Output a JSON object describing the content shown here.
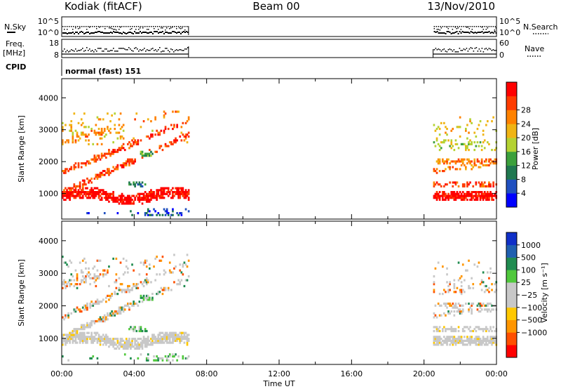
{
  "header": {
    "station": "Kodiak (fitACF)",
    "beam": "Beam 00",
    "date": "13/Nov/2010"
  },
  "status_panels": {
    "nsky_label": "N.Sky",
    "nsearch_label": "N.Search",
    "nsky_ticks": [
      "10^5",
      "10^0"
    ],
    "freq_label_1": "Freq.",
    "freq_label_2": "[MHz]",
    "freq_ticks": [
      "18",
      "8"
    ],
    "nave_label": "Nave",
    "nave_ticks": [
      "60",
      "0"
    ],
    "cpid_label": "CPID",
    "cpid_value": "normal (fast) 151"
  },
  "colors": {
    "power": [
      "#0000ff",
      "#2050c0",
      "#207850",
      "#3ca03c",
      "#b4d232",
      "#f0b414",
      "#ff8200",
      "#ff3c00",
      "#ff0000"
    ],
    "velocity": [
      "#ff0000",
      "#ff5000",
      "#ff9600",
      "#ffc800",
      "#c8c8c8",
      "#c8c8c8",
      "#50c83c",
      "#208c50",
      "#2060b0",
      "#1030c8"
    ]
  },
  "chart_data": [
    {
      "type": "heatmap",
      "title": "Power",
      "xlabel": "Time UT",
      "ylabel": "Slant Range [km]",
      "x_ticks": [
        "00:00",
        "04:00",
        "08:00",
        "12:00",
        "16:00",
        "20:00",
        "00:00"
      ],
      "y_ticks": [
        "1000",
        "2000",
        "3000",
        "4000"
      ],
      "xlim": [
        0,
        24
      ],
      "ylim": [
        200,
        4600
      ],
      "colorbar": {
        "label": "Power [dB]",
        "ticks": [
          "4",
          "8",
          "12",
          "16",
          "20",
          "24",
          "28"
        ]
      },
      "data_intervals_hours": [
        [
          0,
          7
        ],
        [
          20.5,
          24
        ]
      ]
    },
    {
      "type": "heatmap",
      "title": "Velocity",
      "xlabel": "Time UT",
      "ylabel": "Slant Range [km]",
      "x_ticks": [
        "00:00",
        "04:00",
        "08:00",
        "12:00",
        "16:00",
        "20:00",
        "00:00"
      ],
      "y_ticks": [
        "1000",
        "2000",
        "3000",
        "4000"
      ],
      "xlim": [
        0,
        24
      ],
      "ylim": [
        200,
        4600
      ],
      "colorbar": {
        "label": "Velocity [m s⁻¹]",
        "ticks": [
          "1000",
          "500",
          "100",
          "25",
          "−25",
          "−100",
          "−500",
          "−1000"
        ]
      },
      "data_intervals_hours": [
        [
          0,
          7
        ],
        [
          20.5,
          24
        ]
      ]
    }
  ]
}
